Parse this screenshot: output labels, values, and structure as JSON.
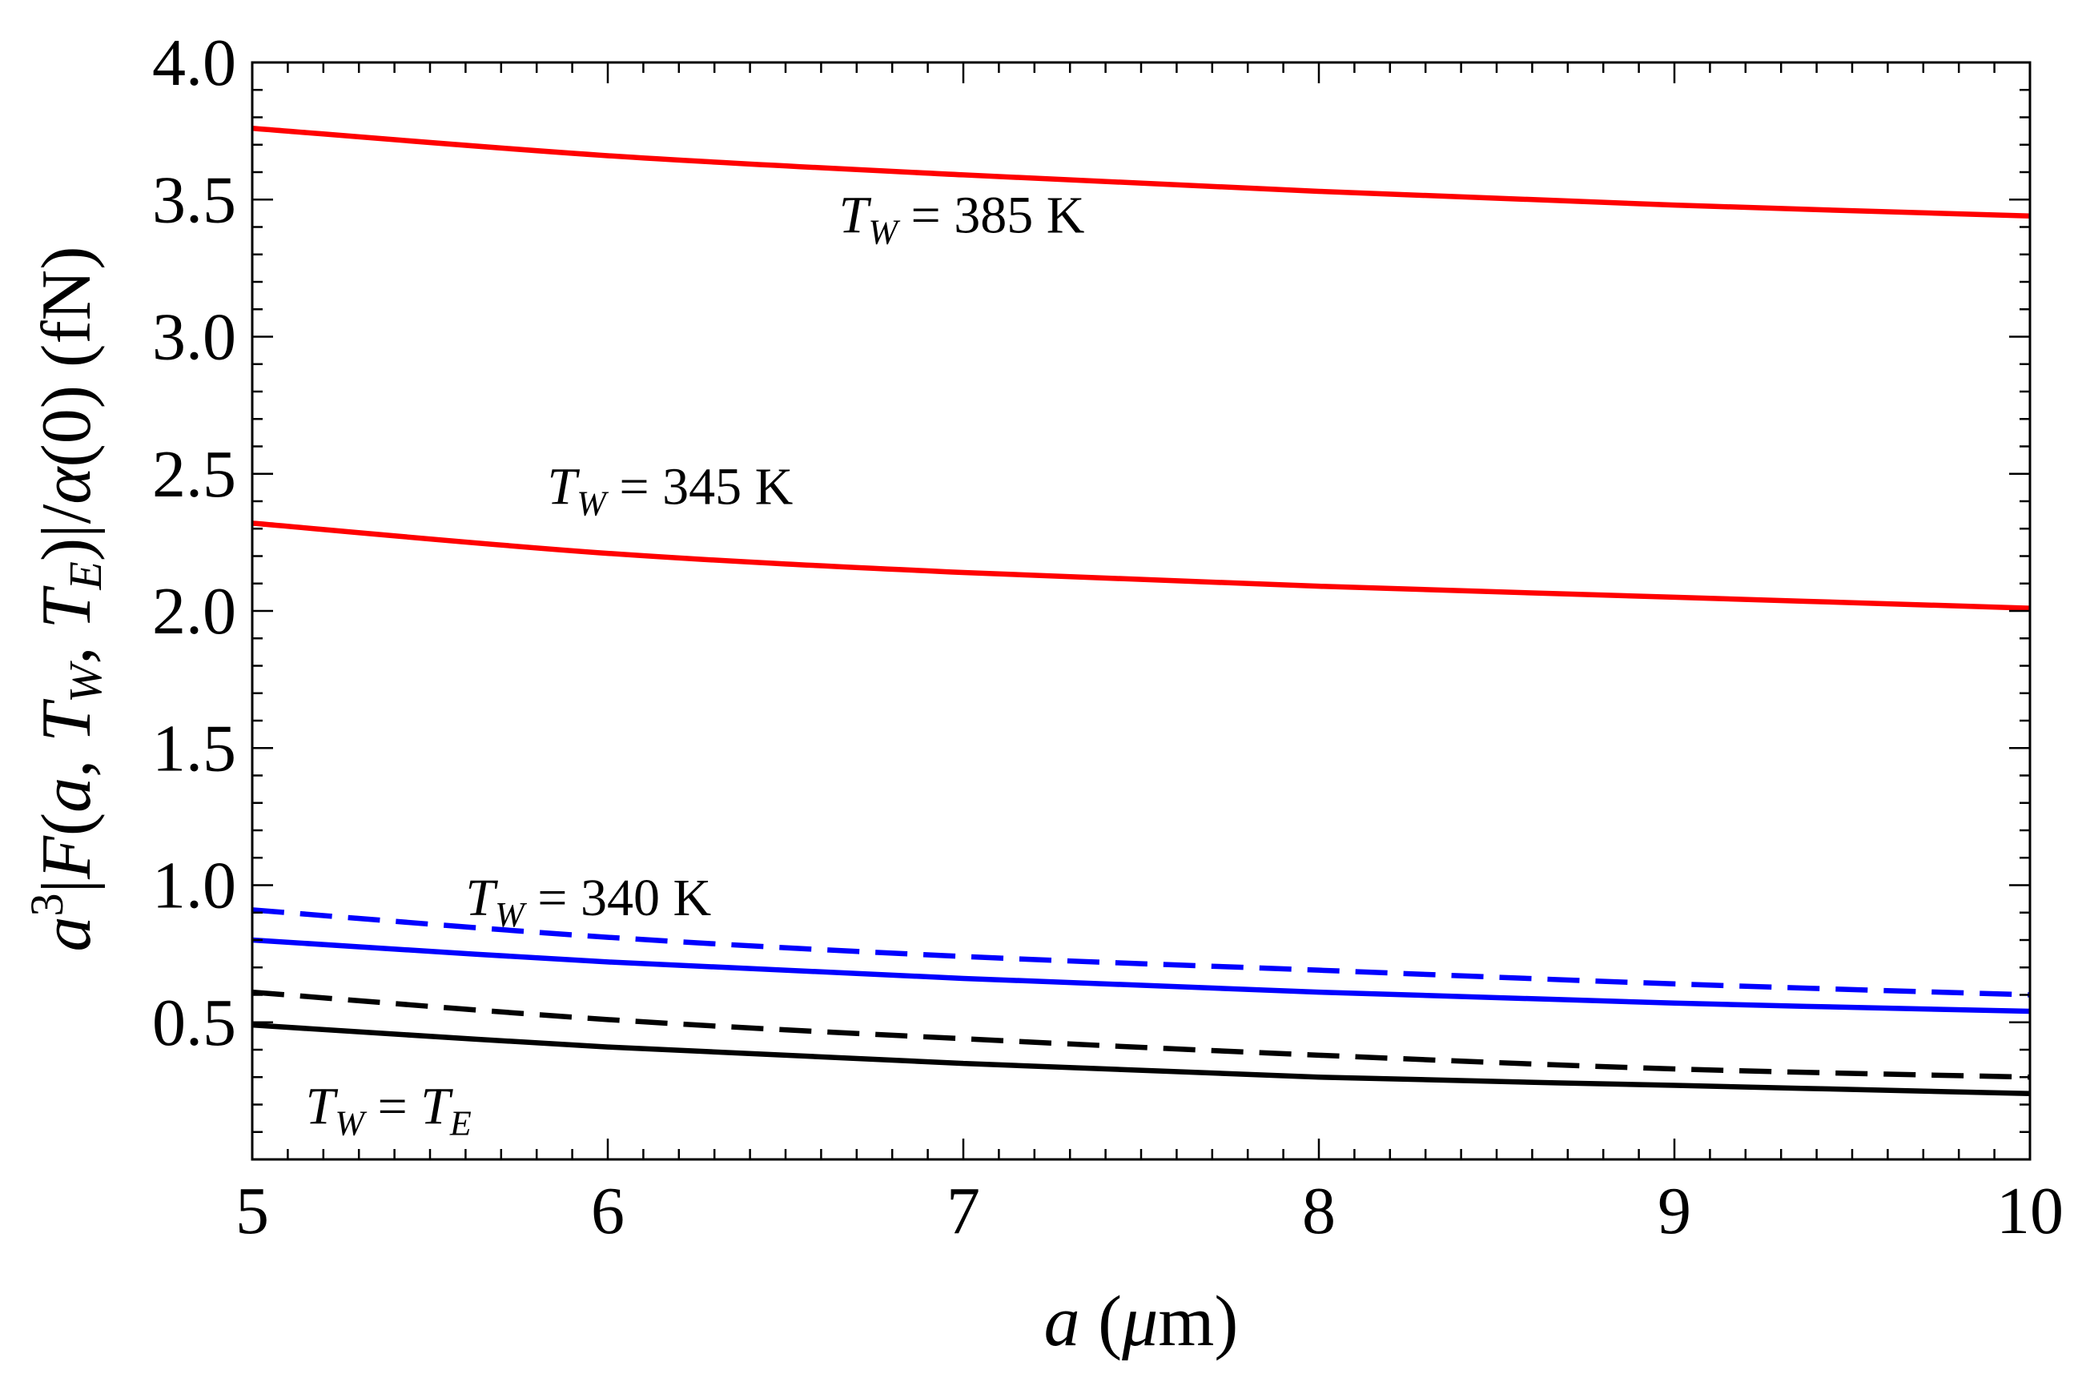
{
  "chart_data": {
    "type": "line",
    "title": "",
    "xlabel": "a (μm)",
    "ylabel": "a³|F(a,T_W,T_E)|/α(0) (fN)",
    "xlim": [
      5,
      10
    ],
    "ylim": [
      0,
      4.0
    ],
    "grid": false,
    "x_ticks": [
      "5",
      "6",
      "7",
      "8",
      "9",
      "10"
    ],
    "y_ticks": [
      "0.5",
      "1.0",
      "1.5",
      "2.0",
      "2.5",
      "3.0",
      "3.5",
      "4.0"
    ],
    "series": [
      {
        "name": "T_W = 385 K",
        "color": "#ff0000",
        "style": "solid",
        "x": [
          5,
          6,
          7,
          8,
          9,
          10
        ],
        "values": [
          3.76,
          3.66,
          3.59,
          3.53,
          3.48,
          3.44
        ]
      },
      {
        "name": "T_W = 345 K",
        "color": "#ff0000",
        "style": "solid",
        "x": [
          5,
          6,
          7,
          8,
          9,
          10
        ],
        "values": [
          2.32,
          2.21,
          2.14,
          2.09,
          2.05,
          2.01
        ]
      },
      {
        "name": "T_W = 340 K (dashed)",
        "color": "#0000ff",
        "style": "dashed",
        "x": [
          5,
          6,
          7,
          8,
          9,
          10
        ],
        "values": [
          0.91,
          0.81,
          0.74,
          0.69,
          0.64,
          0.6
        ]
      },
      {
        "name": "T_W = 340 K (solid)",
        "color": "#0000ff",
        "style": "solid",
        "x": [
          5,
          6,
          7,
          8,
          9,
          10
        ],
        "values": [
          0.8,
          0.72,
          0.66,
          0.61,
          0.57,
          0.54
        ]
      },
      {
        "name": "T_W = T_E (dashed)",
        "color": "#000000",
        "style": "dashed",
        "x": [
          5,
          6,
          7,
          8,
          9,
          10
        ],
        "values": [
          0.61,
          0.51,
          0.44,
          0.38,
          0.33,
          0.3
        ]
      },
      {
        "name": "T_W = T_E (solid)",
        "color": "#000000",
        "style": "solid",
        "x": [
          5,
          6,
          7,
          8,
          9,
          10
        ],
        "values": [
          0.49,
          0.41,
          0.35,
          0.3,
          0.27,
          0.24
        ]
      }
    ],
    "annotations": [
      {
        "id": "t385",
        "var": "T",
        "sub": "W",
        "rest": " = 385 K",
        "x": 6.65,
        "y": 3.38
      },
      {
        "id": "t345",
        "var": "T",
        "sub": "W",
        "rest": " = 345 K",
        "x": 5.83,
        "y": 2.39
      },
      {
        "id": "t340",
        "var": "T",
        "sub": "W",
        "rest": " = 340 K",
        "x": 5.6,
        "y": 0.89
      },
      {
        "id": "tE",
        "var": "T",
        "sub": "W",
        "rest": " = ",
        "var2": "T",
        "sub2": "E",
        "x": 5.15,
        "y": 0.13
      }
    ]
  }
}
